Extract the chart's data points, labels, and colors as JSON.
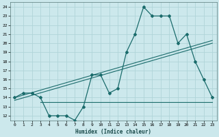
{
  "xlabel": "Humidex (Indice chaleur)",
  "bg_color": "#cce8ec",
  "grid_color": "#b0d4d8",
  "line_color": "#1a6b6b",
  "x_values": [
    0,
    1,
    2,
    3,
    4,
    5,
    6,
    7,
    8,
    9,
    10,
    11,
    12,
    13,
    14,
    15,
    16,
    17,
    18,
    19,
    20,
    21,
    22,
    23
  ],
  "y_humidex": [
    14,
    14.5,
    14.5,
    14,
    12,
    12,
    12,
    11.5,
    13,
    16.5,
    16.5,
    14.5,
    15,
    19,
    21,
    24,
    23,
    23,
    23,
    20,
    21,
    18,
    16,
    14
  ],
  "y_flat": 13.5,
  "x_flat_start": 3,
  "x_flat_end": 23,
  "ylim": [
    11.5,
    24.5
  ],
  "xlim": [
    -0.5,
    23.5
  ],
  "yticks": [
    12,
    13,
    14,
    15,
    16,
    17,
    18,
    19,
    20,
    21,
    22,
    23,
    24
  ],
  "xticks": [
    0,
    1,
    2,
    3,
    4,
    5,
    6,
    7,
    8,
    9,
    10,
    11,
    12,
    13,
    14,
    15,
    16,
    17,
    18,
    19,
    20,
    21,
    22,
    23
  ],
  "trend_x_start": 0,
  "trend_x_end": 23,
  "trend1_y_start": 14.0,
  "trend1_y_end": 20.3,
  "trend2_y_start": 13.7,
  "trend2_y_end": 20.0
}
